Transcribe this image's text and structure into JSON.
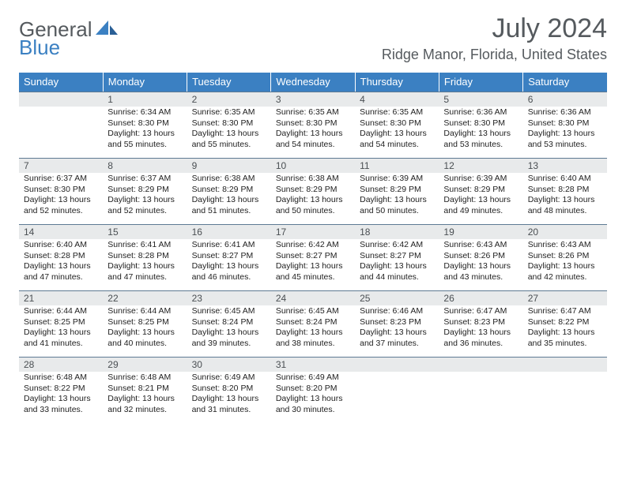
{
  "logo": {
    "word1": "General",
    "word2": "Blue"
  },
  "title": {
    "month": "July 2024",
    "location": "Ridge Manor, Florida, United States"
  },
  "colors": {
    "accent": "#3b80c2",
    "header_bg": "#3b80c2",
    "daybar_bg": "#e8eaeb",
    "daybar_border": "#5e7a93",
    "text_muted": "#555a5e"
  },
  "weekdays": [
    "Sunday",
    "Monday",
    "Tuesday",
    "Wednesday",
    "Thursday",
    "Friday",
    "Saturday"
  ],
  "weeks": [
    [
      {
        "n": "",
        "sunrise": "",
        "sunset": "",
        "daylight": ""
      },
      {
        "n": "1",
        "sunrise": "Sunrise: 6:34 AM",
        "sunset": "Sunset: 8:30 PM",
        "daylight": "Daylight: 13 hours and 55 minutes."
      },
      {
        "n": "2",
        "sunrise": "Sunrise: 6:35 AM",
        "sunset": "Sunset: 8:30 PM",
        "daylight": "Daylight: 13 hours and 55 minutes."
      },
      {
        "n": "3",
        "sunrise": "Sunrise: 6:35 AM",
        "sunset": "Sunset: 8:30 PM",
        "daylight": "Daylight: 13 hours and 54 minutes."
      },
      {
        "n": "4",
        "sunrise": "Sunrise: 6:35 AM",
        "sunset": "Sunset: 8:30 PM",
        "daylight": "Daylight: 13 hours and 54 minutes."
      },
      {
        "n": "5",
        "sunrise": "Sunrise: 6:36 AM",
        "sunset": "Sunset: 8:30 PM",
        "daylight": "Daylight: 13 hours and 53 minutes."
      },
      {
        "n": "6",
        "sunrise": "Sunrise: 6:36 AM",
        "sunset": "Sunset: 8:30 PM",
        "daylight": "Daylight: 13 hours and 53 minutes."
      }
    ],
    [
      {
        "n": "7",
        "sunrise": "Sunrise: 6:37 AM",
        "sunset": "Sunset: 8:30 PM",
        "daylight": "Daylight: 13 hours and 52 minutes."
      },
      {
        "n": "8",
        "sunrise": "Sunrise: 6:37 AM",
        "sunset": "Sunset: 8:29 PM",
        "daylight": "Daylight: 13 hours and 52 minutes."
      },
      {
        "n": "9",
        "sunrise": "Sunrise: 6:38 AM",
        "sunset": "Sunset: 8:29 PM",
        "daylight": "Daylight: 13 hours and 51 minutes."
      },
      {
        "n": "10",
        "sunrise": "Sunrise: 6:38 AM",
        "sunset": "Sunset: 8:29 PM",
        "daylight": "Daylight: 13 hours and 50 minutes."
      },
      {
        "n": "11",
        "sunrise": "Sunrise: 6:39 AM",
        "sunset": "Sunset: 8:29 PM",
        "daylight": "Daylight: 13 hours and 50 minutes."
      },
      {
        "n": "12",
        "sunrise": "Sunrise: 6:39 AM",
        "sunset": "Sunset: 8:29 PM",
        "daylight": "Daylight: 13 hours and 49 minutes."
      },
      {
        "n": "13",
        "sunrise": "Sunrise: 6:40 AM",
        "sunset": "Sunset: 8:28 PM",
        "daylight": "Daylight: 13 hours and 48 minutes."
      }
    ],
    [
      {
        "n": "14",
        "sunrise": "Sunrise: 6:40 AM",
        "sunset": "Sunset: 8:28 PM",
        "daylight": "Daylight: 13 hours and 47 minutes."
      },
      {
        "n": "15",
        "sunrise": "Sunrise: 6:41 AM",
        "sunset": "Sunset: 8:28 PM",
        "daylight": "Daylight: 13 hours and 47 minutes."
      },
      {
        "n": "16",
        "sunrise": "Sunrise: 6:41 AM",
        "sunset": "Sunset: 8:27 PM",
        "daylight": "Daylight: 13 hours and 46 minutes."
      },
      {
        "n": "17",
        "sunrise": "Sunrise: 6:42 AM",
        "sunset": "Sunset: 8:27 PM",
        "daylight": "Daylight: 13 hours and 45 minutes."
      },
      {
        "n": "18",
        "sunrise": "Sunrise: 6:42 AM",
        "sunset": "Sunset: 8:27 PM",
        "daylight": "Daylight: 13 hours and 44 minutes."
      },
      {
        "n": "19",
        "sunrise": "Sunrise: 6:43 AM",
        "sunset": "Sunset: 8:26 PM",
        "daylight": "Daylight: 13 hours and 43 minutes."
      },
      {
        "n": "20",
        "sunrise": "Sunrise: 6:43 AM",
        "sunset": "Sunset: 8:26 PM",
        "daylight": "Daylight: 13 hours and 42 minutes."
      }
    ],
    [
      {
        "n": "21",
        "sunrise": "Sunrise: 6:44 AM",
        "sunset": "Sunset: 8:25 PM",
        "daylight": "Daylight: 13 hours and 41 minutes."
      },
      {
        "n": "22",
        "sunrise": "Sunrise: 6:44 AM",
        "sunset": "Sunset: 8:25 PM",
        "daylight": "Daylight: 13 hours and 40 minutes."
      },
      {
        "n": "23",
        "sunrise": "Sunrise: 6:45 AM",
        "sunset": "Sunset: 8:24 PM",
        "daylight": "Daylight: 13 hours and 39 minutes."
      },
      {
        "n": "24",
        "sunrise": "Sunrise: 6:45 AM",
        "sunset": "Sunset: 8:24 PM",
        "daylight": "Daylight: 13 hours and 38 minutes."
      },
      {
        "n": "25",
        "sunrise": "Sunrise: 6:46 AM",
        "sunset": "Sunset: 8:23 PM",
        "daylight": "Daylight: 13 hours and 37 minutes."
      },
      {
        "n": "26",
        "sunrise": "Sunrise: 6:47 AM",
        "sunset": "Sunset: 8:23 PM",
        "daylight": "Daylight: 13 hours and 36 minutes."
      },
      {
        "n": "27",
        "sunrise": "Sunrise: 6:47 AM",
        "sunset": "Sunset: 8:22 PM",
        "daylight": "Daylight: 13 hours and 35 minutes."
      }
    ],
    [
      {
        "n": "28",
        "sunrise": "Sunrise: 6:48 AM",
        "sunset": "Sunset: 8:22 PM",
        "daylight": "Daylight: 13 hours and 33 minutes."
      },
      {
        "n": "29",
        "sunrise": "Sunrise: 6:48 AM",
        "sunset": "Sunset: 8:21 PM",
        "daylight": "Daylight: 13 hours and 32 minutes."
      },
      {
        "n": "30",
        "sunrise": "Sunrise: 6:49 AM",
        "sunset": "Sunset: 8:20 PM",
        "daylight": "Daylight: 13 hours and 31 minutes."
      },
      {
        "n": "31",
        "sunrise": "Sunrise: 6:49 AM",
        "sunset": "Sunset: 8:20 PM",
        "daylight": "Daylight: 13 hours and 30 minutes."
      },
      {
        "n": "",
        "sunrise": "",
        "sunset": "",
        "daylight": ""
      },
      {
        "n": "",
        "sunrise": "",
        "sunset": "",
        "daylight": ""
      },
      {
        "n": "",
        "sunrise": "",
        "sunset": "",
        "daylight": ""
      }
    ]
  ]
}
